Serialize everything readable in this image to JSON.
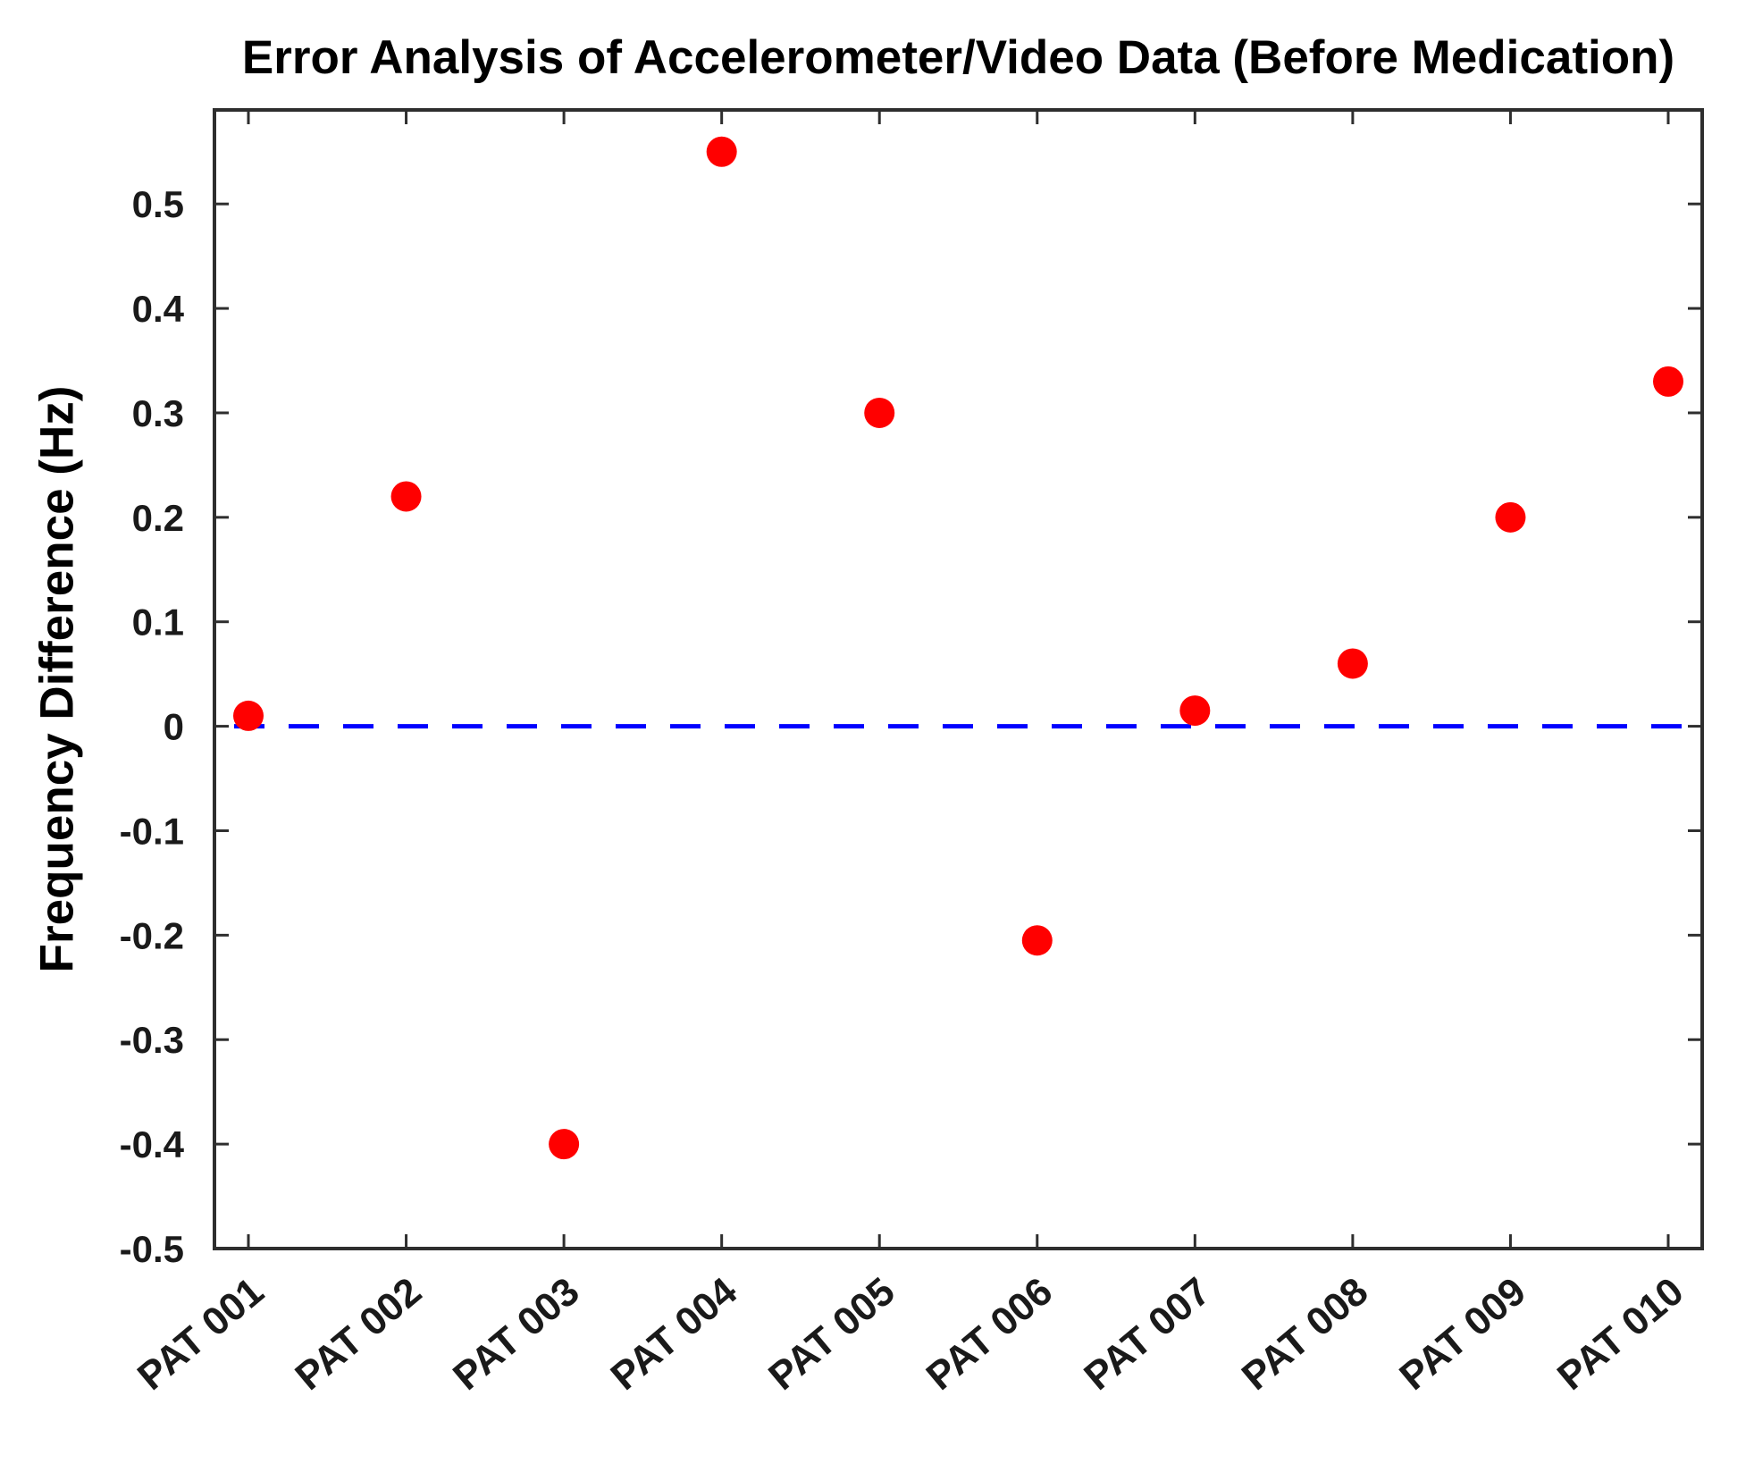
{
  "figure": {
    "background": "#ffffff"
  },
  "chart_data": {
    "type": "scatter",
    "title": "Error Analysis of Accelerometer/Video Data (Before Medication)",
    "xlabel": "",
    "ylabel": "Frequency Difference (Hz)",
    "categories": [
      "PAT 001",
      "PAT 002",
      "PAT 003",
      "PAT 004",
      "PAT 005",
      "PAT 006",
      "PAT 007",
      "PAT 008",
      "PAT 009",
      "PAT 010"
    ],
    "values": [
      0.01,
      0.22,
      -0.4,
      0.55,
      0.3,
      -0.205,
      0.015,
      0.06,
      0.2,
      0.33
    ],
    "ylim": [
      -0.5,
      0.59
    ],
    "y_tick_labels": [
      "0.5",
      "0.4",
      "0.3",
      "0.2",
      "0.1",
      "0",
      "-0.1",
      "-0.2",
      "-0.3",
      "-0.4",
      "-0.5"
    ],
    "zero_line": {
      "value": 0,
      "style": "dashed",
      "color": "#0000ff"
    },
    "marker": {
      "shape": "circle",
      "color": "#ff0000"
    },
    "grid": false,
    "legend": "none",
    "colors": {
      "marker": "#ff0000",
      "zero_line": "#0000ff",
      "axis": "#2e2e2e",
      "tick_text": "#1a1a1a",
      "title_text": "#000000"
    }
  }
}
